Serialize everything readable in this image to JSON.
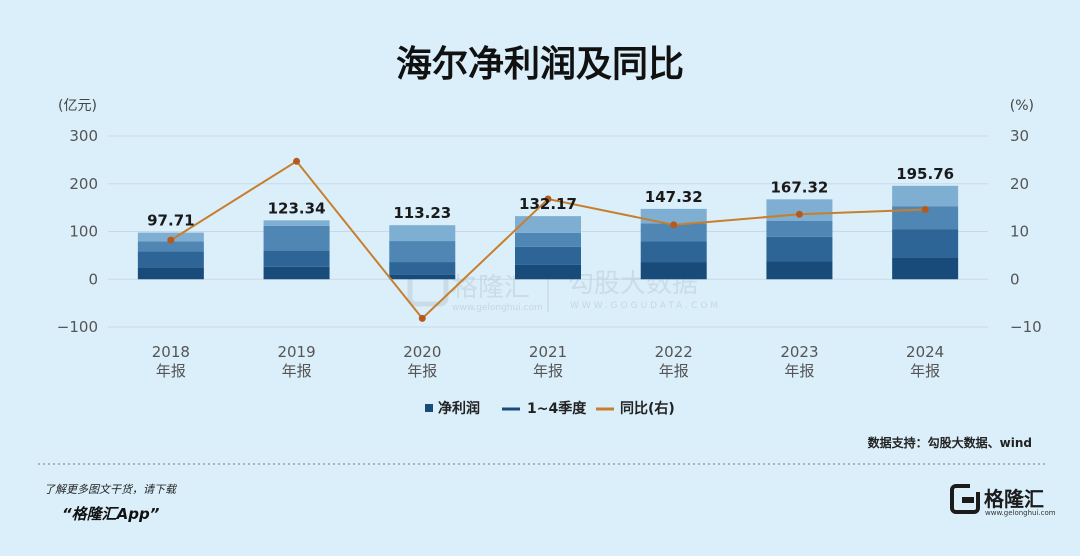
{
  "chart_data": {
    "type": "bar",
    "title": "海尔净利润及同比",
    "y_left_unit": "(亿元)",
    "y_right_unit": "(%)",
    "y_left_ticks": [
      300,
      200,
      100,
      0,
      -100
    ],
    "y_left_tick_labels": [
      "300",
      "200",
      "100",
      "0",
      "−100"
    ],
    "y_right_ticks": [
      30,
      20,
      10,
      0,
      -10
    ],
    "y_right_tick_labels": [
      "30",
      "20",
      "10",
      "0",
      "−10"
    ],
    "ylim_left": [
      -100,
      300
    ],
    "ylim_right": [
      -10,
      30
    ],
    "grid": true,
    "categories": [
      {
        "year": "2018",
        "suffix": "年报"
      },
      {
        "year": "2019",
        "suffix": "年报"
      },
      {
        "year": "2020",
        "suffix": "年报"
      },
      {
        "year": "2021",
        "suffix": "年报"
      },
      {
        "year": "2022",
        "suffix": "年报"
      },
      {
        "year": "2023",
        "suffix": "年报"
      },
      {
        "year": "2024",
        "suffix": "年报"
      }
    ],
    "series": [
      {
        "name": "净利润",
        "axis": "left",
        "kind": "bar",
        "values": [
          97.71,
          123.34,
          113.23,
          132.17,
          147.32,
          167.32,
          195.76
        ],
        "labels": [
          "97.71",
          "123.34",
          "113.23",
          "132.17",
          "147.32",
          "167.32",
          "195.76"
        ]
      },
      {
        "name": "1~4季度",
        "axis": "left",
        "kind": "stacked-cumulative",
        "cumulative_values": [
          [
            25,
            58,
            79,
            97.71
          ],
          [
            26,
            60,
            112,
            123.34
          ],
          [
            9,
            36,
            80,
            113.23
          ],
          [
            30,
            68,
            97,
            132.17
          ],
          [
            36,
            79,
            117,
            147.32
          ],
          [
            38,
            89,
            122,
            167.32
          ],
          [
            46,
            105,
            153,
            195.76
          ]
        ]
      },
      {
        "name": "同比(右)",
        "axis": "right",
        "kind": "line",
        "values": [
          8.2,
          24.7,
          -8.2,
          16.8,
          11.4,
          13.6,
          14.6
        ]
      }
    ],
    "legend_placement": "bottom-center"
  },
  "colors": {
    "quarter_fills": [
      "#184b7a",
      "#2d6596",
      "#4f86b4",
      "#7eaed2"
    ],
    "line": "#c77f2e",
    "grid": "#c9d8e4",
    "background": "#dbeffa"
  },
  "source_note": "数据支持：勾股大数据、wind",
  "footer": {
    "line1": "了解更多图文干货，请下载",
    "line2": "“格隆汇App”"
  },
  "watermark": {
    "brand": "格隆汇",
    "brand_url": "www.gelonghui.com",
    "partner": "勾股大数据",
    "partner_url": "WWW.GOGUDATA.COM"
  },
  "logo": {
    "text": "格隆汇",
    "sub": "www.gelonghui.com",
    "icon": "gelonghui-g-icon"
  }
}
